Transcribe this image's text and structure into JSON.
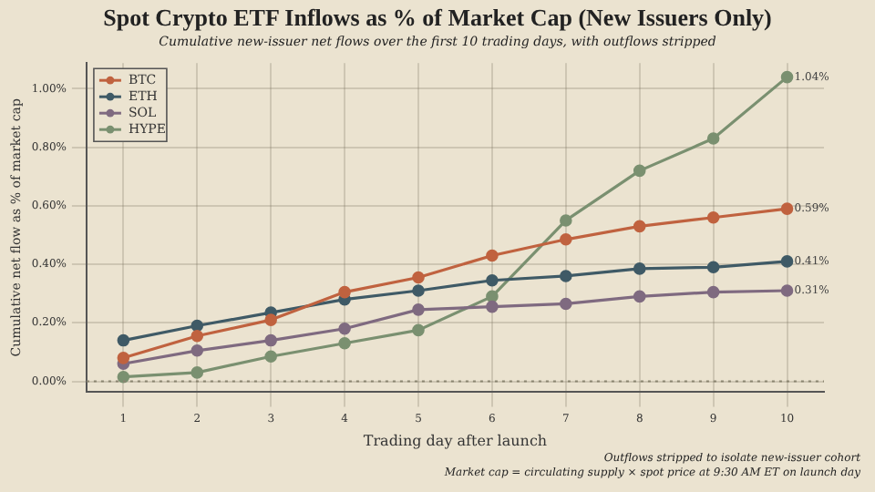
{
  "chart_data": {
    "type": "line",
    "title": "Spot Crypto ETF Inflows as % of Market Cap (New Issuers Only)",
    "subtitle": "Cumulative new-issuer net flows over the first 10 trading days, with outflows stripped",
    "xlabel": "Trading day after launch",
    "ylabel": "Cumulative net flow as % of market cap",
    "categories": [
      "1",
      "2",
      "3",
      "4",
      "5",
      "6",
      "7",
      "8",
      "9",
      "10"
    ],
    "series": [
      {
        "name": "BTC",
        "color": "#c0623f",
        "values": [
          0.08,
          0.155,
          0.21,
          0.305,
          0.355,
          0.43,
          0.485,
          0.53,
          0.56,
          0.59
        ],
        "value_labels": [
          null,
          null,
          null,
          null,
          null,
          null,
          null,
          null,
          null,
          "0.59%"
        ]
      },
      {
        "name": "ETH",
        "color": "#3f5a66",
        "values": [
          0.14,
          0.19,
          0.235,
          0.28,
          0.31,
          0.345,
          0.36,
          0.385,
          0.39,
          0.41
        ],
        "value_labels": [
          null,
          null,
          null,
          null,
          null,
          null,
          null,
          null,
          null,
          "0.41%"
        ]
      },
      {
        "name": "SOL",
        "color": "#7f6a80",
        "values": [
          0.06,
          0.105,
          0.14,
          0.18,
          0.245,
          0.255,
          0.265,
          0.29,
          0.305,
          0.31
        ],
        "value_labels": [
          null,
          null,
          null,
          null,
          null,
          null,
          null,
          null,
          null,
          "0.31%"
        ]
      },
      {
        "name": "HYPE",
        "color": "#7a9070",
        "values": [
          0.015,
          0.03,
          0.085,
          0.13,
          0.175,
          0.29,
          0.55,
          0.72,
          0.83,
          1.04
        ],
        "value_labels": [
          null,
          null,
          null,
          null,
          null,
          null,
          null,
          null,
          null,
          "1.04%"
        ]
      }
    ],
    "ylim": [
      -0.037,
      1.088
    ],
    "yticks": [
      {
        "value": 0,
        "label": "0.00%"
      },
      {
        "value": 0.2,
        "label": "0.20%"
      },
      {
        "value": 0.4,
        "label": "0.40%"
      },
      {
        "value": 0.6,
        "label": "0.60%"
      },
      {
        "value": 0.8,
        "label": "0.80%"
      },
      {
        "value": 1.0,
        "label": "1.00%"
      }
    ],
    "ref_lines": [
      {
        "axis": "y",
        "value": 0,
        "color": "#8a8470",
        "line_style": "dotted"
      }
    ],
    "grid": true,
    "legend": "top left",
    "marker": "circle",
    "line_style": "solid",
    "annotations": [
      "Outflows stripped to isolate new-issuer cohort",
      "Market cap = circulating supply × spot price at 9:30 AM ET on launch day"
    ]
  }
}
